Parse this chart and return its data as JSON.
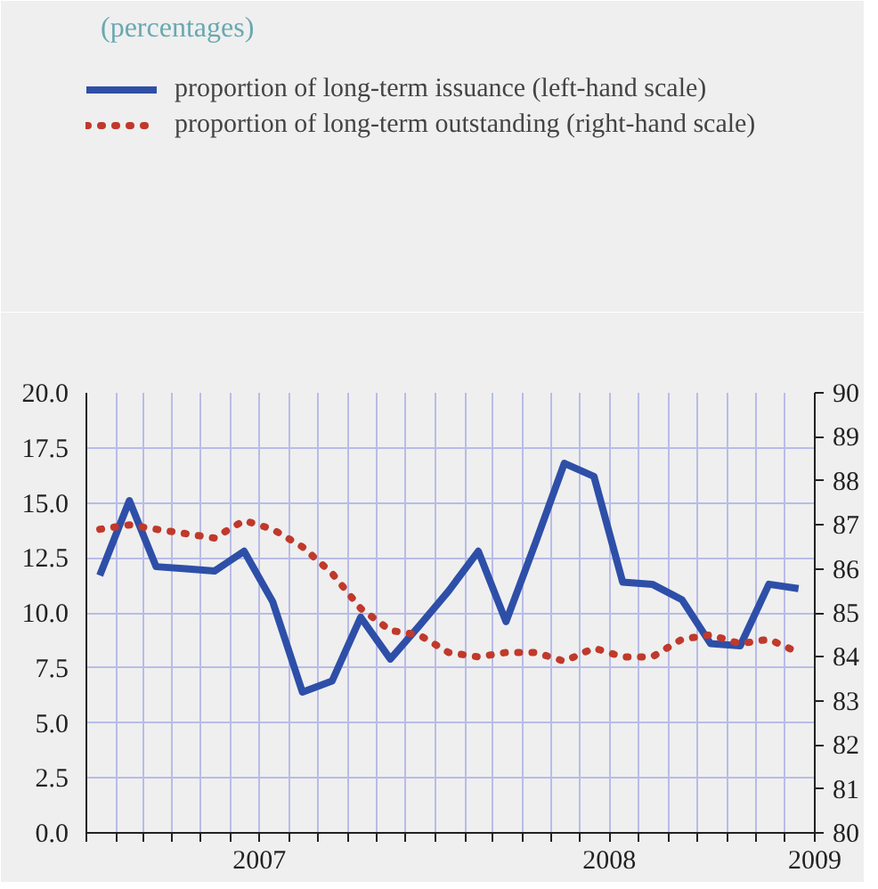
{
  "chart_data": {
    "type": "line",
    "title": "(percentages)",
    "x": [
      "2007-01-15",
      "2007-02-15",
      "2007-03-15",
      "2007-04-15",
      "2007-05-15",
      "2007-06-15",
      "2007-07-15",
      "2007-08-15",
      "2007-09-15",
      "2007-10-15",
      "2007-11-15",
      "2007-12-15",
      "2008-01-15",
      "2008-02-15",
      "2008-03-15",
      "2008-04-15",
      "2008-05-15",
      "2008-06-15",
      "2008-07-15",
      "2008-08-15",
      "2008-09-15",
      "2008-10-15",
      "2008-11-15",
      "2008-12-15",
      "2009-01-15"
    ],
    "series": [
      {
        "name": "proportion of long-term issuance (left-hand scale)",
        "color": "#2e4fa8",
        "line_style": "solid",
        "values": [
          11.7,
          15.1,
          12.1,
          12.0,
          11.9,
          12.8,
          10.5,
          6.4,
          6.9,
          9.8,
          7.9,
          9.4,
          11.0,
          12.8,
          9.6,
          13.2,
          16.8,
          16.2,
          11.4,
          11.3,
          10.6,
          8.6,
          8.5,
          11.3,
          11.1
        ]
      },
      {
        "name": "proportion of long-term outstanding (right-hand scale)",
        "color": "#c0392b",
        "line_style": "dotted",
        "axis": "y2",
        "values": [
          86.9,
          87.0,
          86.9,
          86.8,
          86.7,
          87.1,
          86.9,
          86.5,
          85.9,
          85.1,
          84.6,
          84.5,
          84.1,
          84.0,
          84.1,
          84.1,
          83.9,
          84.2,
          84.0,
          84.0,
          84.4,
          84.5,
          84.3,
          84.4,
          84.1
        ]
      }
    ],
    "xlim": [
      "2007-01-01",
      "2009-02-01"
    ],
    "xticks": [
      {
        "value": "2007-01-01",
        "label": null
      },
      {
        "value": "2007-02-01",
        "label": null
      },
      {
        "value": "2007-03-01",
        "label": null
      },
      {
        "value": "2007-04-01",
        "label": null
      },
      {
        "value": "2007-05-01",
        "label": null
      },
      {
        "value": "2007-06-01",
        "label": null
      },
      {
        "value": "2007-07-01",
        "label": "2007"
      },
      {
        "value": "2007-08-01",
        "label": null
      },
      {
        "value": "2007-09-01",
        "label": null
      },
      {
        "value": "2007-10-01",
        "label": null
      },
      {
        "value": "2007-11-01",
        "label": null
      },
      {
        "value": "2007-12-01",
        "label": null
      },
      {
        "value": "2008-01-01",
        "label": null
      },
      {
        "value": "2008-02-01",
        "label": null
      },
      {
        "value": "2008-03-01",
        "label": null
      },
      {
        "value": "2008-04-01",
        "label": null
      },
      {
        "value": "2008-05-01",
        "label": null
      },
      {
        "value": "2008-06-01",
        "label": null
      },
      {
        "value": "2008-07-01",
        "label": "2008"
      },
      {
        "value": "2008-08-01",
        "label": null
      },
      {
        "value": "2008-09-01",
        "label": null
      },
      {
        "value": "2008-10-01",
        "label": null
      },
      {
        "value": "2008-11-01",
        "label": null
      },
      {
        "value": "2008-12-01",
        "label": null
      },
      {
        "value": "2009-01-01",
        "label": null
      },
      {
        "value": "2009-02-01",
        "label": "2009"
      }
    ],
    "ylim": [
      0,
      20
    ],
    "yticks": [
      {
        "value": 0,
        "label": "0.0"
      },
      {
        "value": 2.5,
        "label": "2.5"
      },
      {
        "value": 5,
        "label": "5.0"
      },
      {
        "value": 7.5,
        "label": "7.5"
      },
      {
        "value": 10,
        "label": "10.0"
      },
      {
        "value": 12.5,
        "label": "12.5"
      },
      {
        "value": 15,
        "label": "15.0"
      },
      {
        "value": 17.5,
        "label": "17.5"
      },
      {
        "value": 20,
        "label": "20.0"
      }
    ],
    "y2lim": [
      80,
      90
    ],
    "y2ticks": [
      80,
      81,
      82,
      83,
      84,
      85,
      86,
      87,
      88,
      89,
      90
    ],
    "grid": true,
    "legend": "top",
    "marker": "none"
  }
}
